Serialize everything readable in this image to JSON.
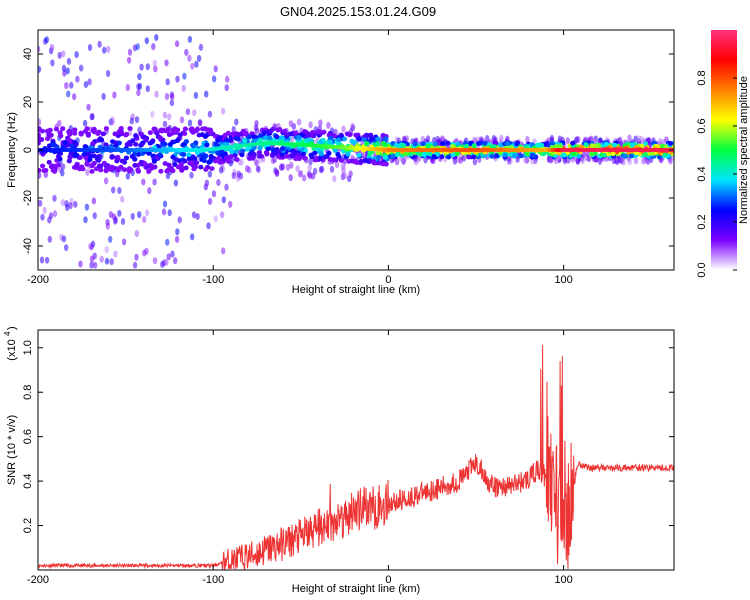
{
  "title": "GN04.2025.153.01.24.G09",
  "chart_data": [
    {
      "type": "heatmap",
      "xlabel": "Height of straight line (km)",
      "ylabel": "Frequency (Hz)",
      "xlim": [
        -200,
        163
      ],
      "ylim": [
        -50,
        50
      ],
      "xticks": [
        -200,
        -100,
        0,
        100
      ],
      "xtick_labels": [
        "-200",
        "-100",
        "0",
        "100"
      ],
      "yticks": [
        -40,
        -20,
        0,
        20,
        40
      ],
      "ytick_labels": [
        "-40",
        "-20",
        "0",
        "20",
        "40"
      ],
      "colorbar": {
        "label": "Normalized spectral amplitude",
        "range": [
          0,
          1
        ],
        "ticks": [
          0.0,
          0.2,
          0.4,
          0.6,
          0.8
        ],
        "tick_labels": [
          "0.0",
          "0.2",
          "0.4",
          "0.6",
          "0.8"
        ],
        "colormap": [
          "#ffffff",
          "#7a00ff",
          "#0000ff",
          "#00e6ff",
          "#00ff40",
          "#ffff00",
          "#ff8000",
          "#ff0000",
          "#ff3080"
        ]
      },
      "ridge": [
        {
          "x": -200,
          "freq": 0,
          "amp": 0.25
        },
        {
          "x": -150,
          "freq": 0,
          "amp": 0.3
        },
        {
          "x": -105,
          "freq": 0,
          "amp": 0.4
        },
        {
          "x": -70,
          "freq": 3,
          "amp": 0.45
        },
        {
          "x": -45,
          "freq": 2,
          "amp": 0.5
        },
        {
          "x": -25,
          "freq": 1,
          "amp": 0.55
        },
        {
          "x": 0,
          "freq": 0,
          "amp": 0.75
        },
        {
          "x": 50,
          "freq": 0,
          "amp": 0.8
        },
        {
          "x": 90,
          "freq": 0,
          "amp": 0.7
        },
        {
          "x": 100,
          "freq": 0,
          "amp": 0.95
        },
        {
          "x": 163,
          "freq": 0,
          "amp": 0.95
        }
      ]
    },
    {
      "type": "line",
      "xlabel": "Height of straight line (km)",
      "ylabel": "SNR (10 * v/v)",
      "yscale_label": "(x10",
      "yscale_exp": "4",
      "xlim": [
        -200,
        163
      ],
      "ylim": [
        0,
        1.08
      ],
      "xticks": [
        -200,
        -100,
        0,
        100
      ],
      "xtick_labels": [
        "-200",
        "-100",
        "0",
        "100"
      ],
      "yticks": [
        0.2,
        0.4,
        0.6,
        0.8,
        1.0
      ],
      "ytick_labels": [
        "0.2",
        "0.4",
        "0.6",
        "0.8",
        "1.0"
      ],
      "color": "#ee3333",
      "series": [
        {
          "x": [
            -200,
            -150,
            -100,
            -90,
            -80,
            -70,
            -60,
            -50,
            -40,
            -30,
            -20,
            -10,
            0,
            10,
            20,
            30,
            40,
            45,
            50,
            55,
            60,
            70,
            80,
            85,
            90,
            95,
            100,
            103,
            108,
            115,
            130,
            150,
            163
          ],
          "y": [
            0.02,
            0.02,
            0.02,
            0.04,
            0.06,
            0.09,
            0.12,
            0.15,
            0.19,
            0.22,
            0.26,
            0.28,
            0.3,
            0.32,
            0.35,
            0.37,
            0.4,
            0.44,
            0.48,
            0.42,
            0.37,
            0.38,
            0.41,
            0.45,
            0.42,
            0.38,
            0.35,
            0.25,
            0.48,
            0.46,
            0.46,
            0.46,
            0.46
          ]
        }
      ]
    }
  ]
}
